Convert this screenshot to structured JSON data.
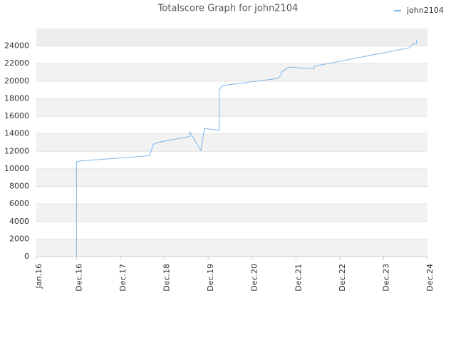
{
  "chart_data": {
    "type": "line",
    "title": "Totalscore Graph for john2104",
    "x": [
      "2016-12",
      "2016-12",
      "2016-12",
      "2017-01",
      "2018-08",
      "2018-09",
      "2018-10",
      "2019-07",
      "2019-07",
      "2019-10",
      "2019-11",
      "2020-03",
      "2020-03",
      "2020-03",
      "2020-04",
      "2021-07",
      "2021-08",
      "2021-08",
      "2021-10",
      "2022-05",
      "2022-05",
      "2024-07",
      "2024-08",
      "2024-09",
      "2024-09"
    ],
    "series": [
      {
        "name": "john2104",
        "color": "#7cb5ec",
        "values": [
          0,
          10500,
          10800,
          10900,
          11500,
          12800,
          13000,
          13700,
          14200,
          12100,
          14600,
          14400,
          15500,
          19000,
          19500,
          20300,
          20700,
          21000,
          21600,
          21400,
          21700,
          23800,
          24200,
          24300,
          24700
        ]
      }
    ],
    "xlim": [
      "2016-01",
      "2024-12"
    ],
    "xticks": [
      {
        "value": "2016-01",
        "label": "Jan.16"
      },
      {
        "value": "2016-12",
        "label": "Dec.16"
      },
      {
        "value": "2017-12",
        "label": "Dec.17"
      },
      {
        "value": "2018-12",
        "label": "Dec.18"
      },
      {
        "value": "2019-12",
        "label": "Dec.19"
      },
      {
        "value": "2020-12",
        "label": "Dec.20"
      },
      {
        "value": "2021-12",
        "label": "Dec.21"
      },
      {
        "value": "2022-12",
        "label": "Dec.22"
      },
      {
        "value": "2023-12",
        "label": "Dec.23"
      },
      {
        "value": "2024-12",
        "label": "Dec.24"
      }
    ],
    "ylim": [
      0,
      26000
    ],
    "yticks": [
      0,
      2000,
      4000,
      6000,
      8000,
      10000,
      12000,
      14000,
      16000,
      18000,
      20000,
      22000,
      24000
    ],
    "grid": true,
    "legend": "top-right"
  }
}
